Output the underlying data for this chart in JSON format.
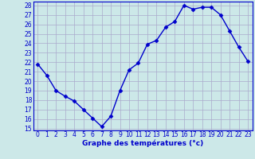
{
  "hours": [
    0,
    1,
    2,
    3,
    4,
    5,
    6,
    7,
    8,
    9,
    10,
    11,
    12,
    13,
    14,
    15,
    16,
    17,
    18,
    19,
    20,
    21,
    22,
    23
  ],
  "temps": [
    21.8,
    20.6,
    19.0,
    18.4,
    17.9,
    17.0,
    16.1,
    15.2,
    16.3,
    19.0,
    21.2,
    21.9,
    23.9,
    24.3,
    25.7,
    26.3,
    28.0,
    27.6,
    27.8,
    27.8,
    27.0,
    25.3,
    23.6,
    22.1
  ],
  "line_color": "#0000cc",
  "marker": "D",
  "marker_size": 2.5,
  "bg_color": "#cce8e8",
  "grid_color": "#aaaacc",
  "xlabel": "Graphe des températures (°c)",
  "xlabel_color": "#0000cc",
  "tick_color": "#0000cc",
  "ylim": [
    15,
    28
  ],
  "yticks": [
    15,
    16,
    17,
    18,
    19,
    20,
    21,
    22,
    23,
    24,
    25,
    26,
    27,
    28
  ],
  "xticks": [
    0,
    1,
    2,
    3,
    4,
    5,
    6,
    7,
    8,
    9,
    10,
    11,
    12,
    13,
    14,
    15,
    16,
    17,
    18,
    19,
    20,
    21,
    22,
    23
  ],
  "tick_fontsize": 5.5,
  "xlabel_fontsize": 6.5
}
